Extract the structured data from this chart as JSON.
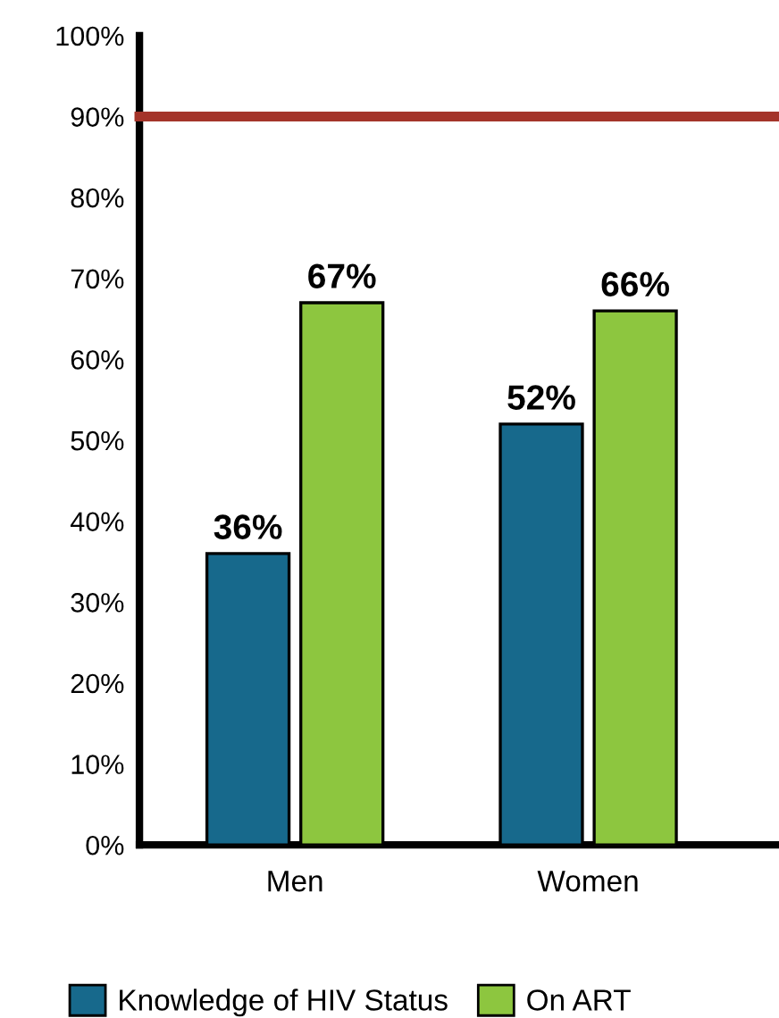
{
  "chart_data": {
    "type": "bar",
    "categories": [
      "Men",
      "Women"
    ],
    "series": [
      {
        "name": "Knowledge of HIV Status",
        "color": "#17698c",
        "values": [
          36,
          52
        ],
        "value_labels": [
          "36%",
          "52%"
        ]
      },
      {
        "name": "On ART",
        "color": "#8dc63f",
        "values": [
          67,
          66
        ],
        "value_labels": [
          "67%",
          "66%"
        ]
      }
    ],
    "ylim": [
      0,
      100
    ],
    "yticks": [
      {
        "value": 0,
        "label": "0%"
      },
      {
        "value": 10,
        "label": "10%"
      },
      {
        "value": 20,
        "label": "20%"
      },
      {
        "value": 30,
        "label": "30%"
      },
      {
        "value": 40,
        "label": "40%"
      },
      {
        "value": 50,
        "label": "50%"
      },
      {
        "value": 60,
        "label": "60%"
      },
      {
        "value": 70,
        "label": "70%"
      },
      {
        "value": 80,
        "label": "80%"
      },
      {
        "value": 90,
        "label": "90%"
      },
      {
        "value": 100,
        "label": "100%"
      }
    ],
    "ref_lines": [
      {
        "axis": "y",
        "value": 90,
        "color": "#a4342a"
      }
    ],
    "legend": "bottom",
    "grid": false
  }
}
